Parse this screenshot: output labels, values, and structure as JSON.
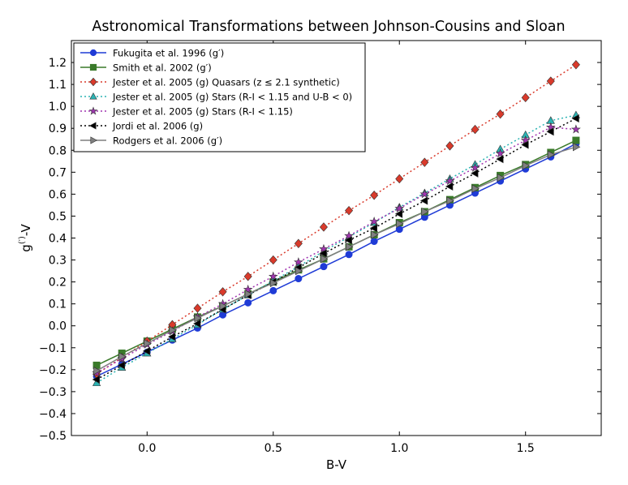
{
  "chart_data": {
    "type": "line",
    "title": "Astronomical Transformations between Johnson-Cousins and Sloan",
    "xlabel": "B-V",
    "ylabel_main": "g",
    "ylabel_sup": "(′)",
    "ylabel_suffix": "-V",
    "xlim": [
      -0.3,
      1.8
    ],
    "ylim": [
      -0.5,
      1.3
    ],
    "xticks": [
      0.0,
      0.5,
      1.0,
      1.5
    ],
    "xtick_labels": [
      "0.0",
      "0.5",
      "1.0",
      "1.5"
    ],
    "yticks": [
      -0.5,
      -0.4,
      -0.3,
      -0.2,
      -0.1,
      0.0,
      0.1,
      0.2,
      0.3,
      0.4,
      0.5,
      0.6,
      0.7,
      0.8,
      0.9,
      1.0,
      1.1,
      1.2
    ],
    "ytick_labels": [
      "−0.5",
      "−0.4",
      "−0.3",
      "−0.2",
      "−0.1",
      "0.0",
      "0.1",
      "0.2",
      "0.3",
      "0.4",
      "0.5",
      "0.6",
      "0.7",
      "0.8",
      "0.9",
      "1.0",
      "1.1",
      "1.2"
    ],
    "grid": false,
    "legend_position": "top-left",
    "x": [
      -0.2,
      -0.1,
      0.0,
      0.1,
      0.2,
      0.3,
      0.4,
      0.5,
      0.6,
      0.7,
      0.8,
      0.9,
      1.0,
      1.1,
      1.2,
      1.3,
      1.4,
      1.5,
      1.6,
      1.7
    ],
    "series": [
      {
        "name": "Fukugita et al. 1996 (g′)",
        "color": "#1f3bd6",
        "marker": "circle",
        "dash": "solid",
        "values": [
          -0.23,
          -0.175,
          -0.12,
          -0.065,
          -0.01,
          0.05,
          0.105,
          0.16,
          0.215,
          0.27,
          0.325,
          0.385,
          0.44,
          0.495,
          0.55,
          0.605,
          0.66,
          0.715,
          0.77,
          0.83
        ]
      },
      {
        "name": "Smith et al. 2002 (g′)",
        "color": "#3a7a2a",
        "marker": "square",
        "dash": "solid",
        "values": [
          -0.18,
          -0.125,
          -0.07,
          -0.015,
          0.04,
          0.09,
          0.145,
          0.2,
          0.255,
          0.305,
          0.36,
          0.415,
          0.47,
          0.52,
          0.575,
          0.63,
          0.685,
          0.735,
          0.79,
          0.845
        ]
      },
      {
        "name": "Jester et al. 2005 (g) Quasars (z ≤ 2.1 synthetic)",
        "color": "#d93a2b",
        "marker": "diamond",
        "dash": "dotted",
        "values": [
          -0.22,
          -0.145,
          -0.07,
          0.005,
          0.08,
          0.155,
          0.225,
          0.3,
          0.375,
          0.45,
          0.525,
          0.595,
          0.67,
          0.745,
          0.82,
          0.895,
          0.965,
          1.04,
          1.115,
          1.19
        ]
      },
      {
        "name": "Jester et al. 2005 (g) Stars (R-I < 1.15 and U-B < 0)",
        "color": "#2bb3b3",
        "marker": "triangle-up",
        "dash": "dotted",
        "values": [
          -0.26,
          -0.19,
          -0.125,
          -0.06,
          0.005,
          0.075,
          0.14,
          0.205,
          0.27,
          0.34,
          0.405,
          0.47,
          0.54,
          0.605,
          0.67,
          0.735,
          0.805,
          0.87,
          0.935,
          0.96
        ]
      },
      {
        "name": "Jester et al. 2005 (g) Stars (R-I < 1.15)",
        "color": "#a035b0",
        "marker": "star",
        "dash": "dotted",
        "values": [
          -0.215,
          -0.15,
          -0.085,
          -0.025,
          0.04,
          0.1,
          0.165,
          0.225,
          0.29,
          0.35,
          0.41,
          0.475,
          0.535,
          0.6,
          0.66,
          0.72,
          0.785,
          0.845,
          0.905,
          0.895
        ]
      },
      {
        "name": "Jordi et al. 2006 (g)",
        "color": "#000000",
        "marker": "triangle-left",
        "dash": "dotted",
        "values": [
          -0.245,
          -0.18,
          -0.115,
          -0.05,
          0.01,
          0.075,
          0.14,
          0.2,
          0.265,
          0.33,
          0.39,
          0.445,
          0.51,
          0.57,
          0.635,
          0.695,
          0.76,
          0.825,
          0.885,
          0.945
        ]
      },
      {
        "name": "Rodgers et al. 2006 (g′)",
        "color": "#7f7f7f",
        "marker": "triangle-right",
        "dash": "solid",
        "values": [
          -0.205,
          -0.14,
          -0.08,
          -0.02,
          0.035,
          0.09,
          0.145,
          0.195,
          0.25,
          0.305,
          0.36,
          0.415,
          0.465,
          0.52,
          0.57,
          0.625,
          0.675,
          0.73,
          0.78,
          0.815
        ]
      }
    ]
  }
}
